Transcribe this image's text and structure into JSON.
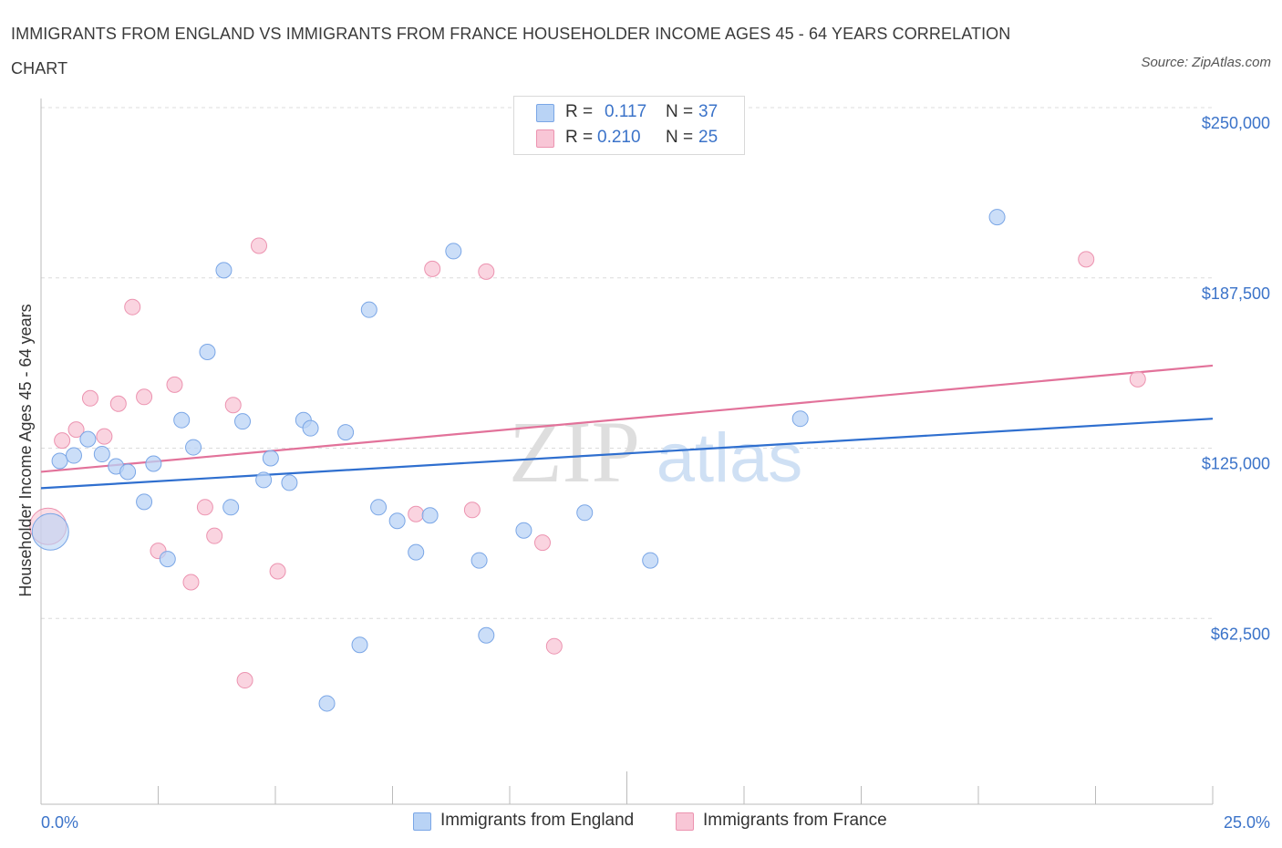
{
  "header": {
    "title": "IMMIGRANTS FROM ENGLAND VS IMMIGRANTS FROM FRANCE HOUSEHOLDER INCOME AGES 45 - 64 YEARS CORRELATION CHART",
    "source": "Source: ZipAtlas.com"
  },
  "legend": {
    "england": {
      "r_label": "R =",
      "r_value": "0.117",
      "n_label": "N =",
      "n_value": "37"
    },
    "france": {
      "r_label": "R =",
      "r_value": "0.210",
      "n_label": "N =",
      "n_value": "25"
    }
  },
  "colors": {
    "england_fill": "#b9d3f5",
    "england_stroke": "#7aa6e6",
    "england_line": "#2f6fcf",
    "france_fill": "#f8c6d6",
    "france_stroke": "#ec93b0",
    "france_line": "#e2729a",
    "axis_label_color": "#3b73c9",
    "grid": "#dcdcdc"
  },
  "chart_data": {
    "type": "scatter",
    "title": "IMMIGRANTS FROM ENGLAND VS IMMIGRANTS FROM FRANCE HOUSEHOLDER INCOME AGES 45 - 64 YEARS CORRELATION CHART",
    "xlabel": "",
    "ylabel": "Householder Income Ages 45 - 64 years",
    "xlim": [
      0,
      25
    ],
    "ylim": [
      0,
      250000
    ],
    "x_tick_labels": [
      "0.0%",
      "25.0%"
    ],
    "y_ticks": [
      62500,
      125000,
      187500,
      250000
    ],
    "y_tick_labels": [
      "$62,500",
      "$125,000",
      "$187,500",
      "$250,000"
    ],
    "grid": true,
    "watermark": "ZIPatlas",
    "legend_position": "top-center",
    "series": [
      {
        "name": "Immigrants from England",
        "r": 0.117,
        "n": 37,
        "trend": {
          "x": [
            0,
            25
          ],
          "y": [
            116000,
            141500
          ]
        },
        "points": [
          {
            "x": 0.2,
            "y": 100000,
            "big": true
          },
          {
            "x": 0.4,
            "y": 126000
          },
          {
            "x": 0.7,
            "y": 128000
          },
          {
            "x": 1.0,
            "y": 134000
          },
          {
            "x": 1.3,
            "y": 128500
          },
          {
            "x": 1.6,
            "y": 124000
          },
          {
            "x": 1.85,
            "y": 122000
          },
          {
            "x": 2.2,
            "y": 111000
          },
          {
            "x": 2.4,
            "y": 125000
          },
          {
            "x": 2.7,
            "y": 90000
          },
          {
            "x": 3.0,
            "y": 141000
          },
          {
            "x": 3.25,
            "y": 131000
          },
          {
            "x": 3.55,
            "y": 166000
          },
          {
            "x": 3.9,
            "y": 196000
          },
          {
            "x": 4.05,
            "y": 109000
          },
          {
            "x": 4.3,
            "y": 140500
          },
          {
            "x": 4.75,
            "y": 119000
          },
          {
            "x": 4.9,
            "y": 127000
          },
          {
            "x": 5.3,
            "y": 118000
          },
          {
            "x": 5.6,
            "y": 141000
          },
          {
            "x": 5.75,
            "y": 138000
          },
          {
            "x": 6.1,
            "y": 37000
          },
          {
            "x": 6.5,
            "y": 136500
          },
          {
            "x": 6.8,
            "y": 58500
          },
          {
            "x": 7.0,
            "y": 181500
          },
          {
            "x": 7.2,
            "y": 109000
          },
          {
            "x": 7.6,
            "y": 104000
          },
          {
            "x": 8.0,
            "y": 92500
          },
          {
            "x": 8.3,
            "y": 106000
          },
          {
            "x": 8.8,
            "y": 203000
          },
          {
            "x": 9.35,
            "y": 89500
          },
          {
            "x": 9.5,
            "y": 62000
          },
          {
            "x": 10.3,
            "y": 100500
          },
          {
            "x": 11.6,
            "y": 107000
          },
          {
            "x": 13.0,
            "y": 89500
          },
          {
            "x": 16.2,
            "y": 141500
          },
          {
            "x": 20.4,
            "y": 215500
          }
        ]
      },
      {
        "name": "Immigrants from France",
        "r": 0.21,
        "n": 25,
        "trend": {
          "x": [
            0,
            25
          ],
          "y": [
            122000,
            161000
          ]
        },
        "points": [
          {
            "x": 0.15,
            "y": 102000,
            "big": true
          },
          {
            "x": 0.45,
            "y": 133500
          },
          {
            "x": 0.75,
            "y": 137500
          },
          {
            "x": 1.05,
            "y": 149000
          },
          {
            "x": 1.35,
            "y": 135000
          },
          {
            "x": 1.65,
            "y": 147000
          },
          {
            "x": 1.95,
            "y": 182500
          },
          {
            "x": 2.2,
            "y": 149500
          },
          {
            "x": 2.5,
            "y": 93000
          },
          {
            "x": 2.85,
            "y": 154000
          },
          {
            "x": 3.2,
            "y": 81500
          },
          {
            "x": 3.5,
            "y": 109000
          },
          {
            "x": 3.7,
            "y": 98500
          },
          {
            "x": 4.1,
            "y": 146500
          },
          {
            "x": 4.35,
            "y": 45500
          },
          {
            "x": 4.65,
            "y": 205000
          },
          {
            "x": 5.05,
            "y": 85500
          },
          {
            "x": 8.0,
            "y": 106500
          },
          {
            "x": 8.35,
            "y": 196500
          },
          {
            "x": 9.2,
            "y": 108000
          },
          {
            "x": 9.5,
            "y": 195500
          },
          {
            "x": 10.7,
            "y": 96000
          },
          {
            "x": 10.95,
            "y": 58000
          },
          {
            "x": 22.3,
            "y": 200000
          },
          {
            "x": 23.4,
            "y": 156000
          }
        ]
      }
    ]
  },
  "bottom_legend": {
    "england_label": "Immigrants from England",
    "france_label": "Immigrants from France"
  }
}
